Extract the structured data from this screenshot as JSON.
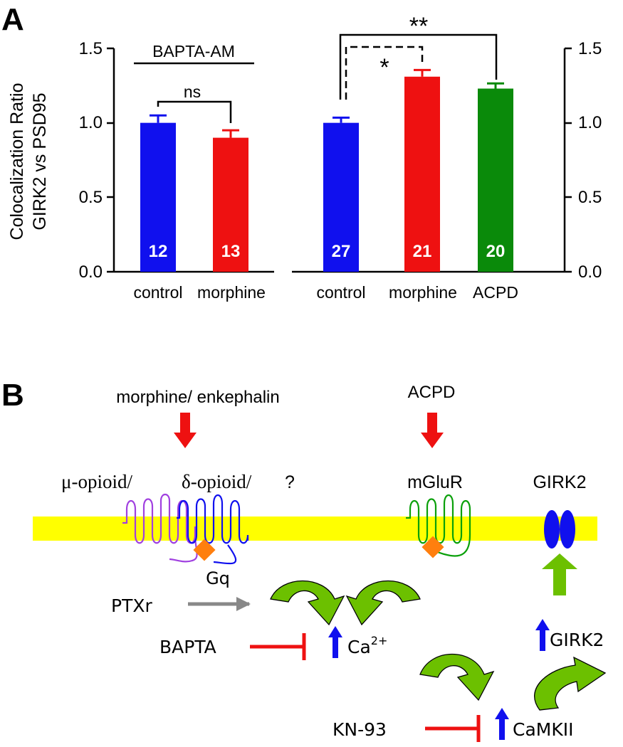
{
  "panel_a": {
    "label": "A"
  },
  "panel_b": {
    "label": "B"
  },
  "chart_data": [
    {
      "type": "bar",
      "annotation": "BAPTA-AM",
      "categories": [
        "control",
        "morphine"
      ],
      "values": [
        1.0,
        0.9
      ],
      "errors": [
        0.05,
        0.05
      ],
      "n_labels": [
        "12",
        "13"
      ],
      "colors": [
        "#1010ee",
        "#ee1111"
      ],
      "ylabel": [
        "Colocalization  Ratio",
        "GIRK2  vs  PSD95"
      ],
      "ylim": [
        0,
        1.5
      ],
      "yticks": [
        "0.0",
        "0.5",
        "1.0",
        "1.5"
      ],
      "axis_side": "left",
      "significance": [
        {
          "from": "control",
          "to": "morphine",
          "label": "ns",
          "style": "solid"
        }
      ]
    },
    {
      "type": "bar",
      "categories": [
        "control",
        "morphine",
        "ACPD"
      ],
      "values": [
        1.0,
        1.31,
        1.23
      ],
      "errors": [
        0.035,
        0.045,
        0.035
      ],
      "n_labels": [
        "27",
        "21",
        "20"
      ],
      "colors": [
        "#1010ee",
        "#ee1111",
        "#0a8a0a"
      ],
      "ylim": [
        0,
        1.5
      ],
      "yticks": [
        "0.0",
        "0.5",
        "1.0",
        "1.5"
      ],
      "axis_side": "right",
      "significance": [
        {
          "from": "control",
          "to": "morphine",
          "label": "*",
          "style": "dashed"
        },
        {
          "from": "control",
          "to": "ACPD",
          "label": "**",
          "style": "solid"
        }
      ]
    }
  ],
  "diagram": {
    "agonist_left": "morphine/  enkephalin",
    "agonist_right": "ACPD",
    "receptor_mu": "μ-opioid/",
    "receptor_delta": "δ-opioid/",
    "receptor_unknown": "?",
    "receptor_mglur": "mGluR",
    "channel_label": "GIRK2",
    "gq_label": "Gq",
    "ptxr_label": "PTXr",
    "bapta_label": "BAPTA",
    "ca_label": "Ca",
    "ca_sup": "2+",
    "kn93_label": "KN-93",
    "camkii_label": "CaMKII",
    "girk2_up_label": "GIRK2",
    "colors": {
      "membrane": "#ffff00",
      "red_arrow": "#ee1111",
      "green_arrow": "#6cc000",
      "blue_arrow": "#1010ee",
      "gray_arrow": "#888888",
      "gq_diamond": "#ff7f0e",
      "receptor_purple": "#a040e0",
      "receptor_blue": "#1010ee",
      "receptor_green": "#0aa00a"
    }
  }
}
